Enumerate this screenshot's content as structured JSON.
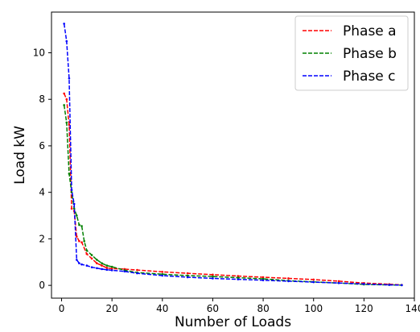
{
  "chart_data": {
    "type": "line",
    "xlabel": "Number of Loads",
    "ylabel": "Load kW",
    "xlim": [
      -4,
      140
    ],
    "ylim": [
      -0.55,
      11.75
    ],
    "xticks": [
      0,
      20,
      40,
      60,
      80,
      100,
      120,
      140
    ],
    "yticks": [
      0,
      2,
      4,
      6,
      8,
      10
    ],
    "grid": false,
    "legend_position": "top-right",
    "series": [
      {
        "name": "Phase a",
        "color": "#ff0000",
        "x": [
          1,
          2,
          3,
          4,
          5,
          6,
          7,
          8,
          10,
          12,
          14,
          16,
          18,
          20,
          25,
          30,
          40,
          50,
          60,
          70,
          80,
          90,
          100,
          110,
          120,
          130,
          135
        ],
        "y": [
          8.25,
          8.0,
          6.9,
          3.3,
          3.2,
          2.1,
          1.9,
          1.85,
          1.35,
          1.15,
          0.95,
          0.85,
          0.75,
          0.72,
          0.7,
          0.66,
          0.58,
          0.52,
          0.46,
          0.4,
          0.35,
          0.3,
          0.25,
          0.18,
          0.1,
          0.05,
          0.02
        ]
      },
      {
        "name": "Phase b",
        "color": "#008000",
        "x": [
          1,
          2,
          3,
          4,
          5,
          6,
          7,
          8,
          9,
          10,
          12,
          14,
          16,
          18,
          20,
          25,
          30,
          40,
          50,
          60,
          70,
          80,
          90,
          100,
          110,
          120,
          130,
          135
        ],
        "y": [
          7.75,
          7.0,
          4.8,
          4.0,
          3.3,
          3.0,
          2.6,
          2.55,
          1.9,
          1.5,
          1.3,
          1.1,
          0.95,
          0.85,
          0.8,
          0.65,
          0.55,
          0.48,
          0.42,
          0.38,
          0.33,
          0.28,
          0.2,
          0.15,
          0.1,
          0.04,
          0.02,
          0.01
        ]
      },
      {
        "name": "Phase c",
        "color": "#0000ff",
        "x": [
          1,
          2,
          3,
          4,
          5,
          6,
          7,
          8,
          10,
          12,
          14,
          16,
          18,
          20,
          25,
          30,
          40,
          50,
          60,
          70,
          80,
          90,
          100,
          110,
          120,
          130,
          135
        ],
        "y": [
          11.25,
          10.5,
          8.9,
          4.1,
          3.5,
          1.1,
          0.95,
          0.9,
          0.85,
          0.78,
          0.74,
          0.7,
          0.67,
          0.65,
          0.6,
          0.52,
          0.42,
          0.35,
          0.3,
          0.26,
          0.22,
          0.18,
          0.14,
          0.1,
          0.06,
          0.02,
          0.01
        ]
      }
    ]
  }
}
